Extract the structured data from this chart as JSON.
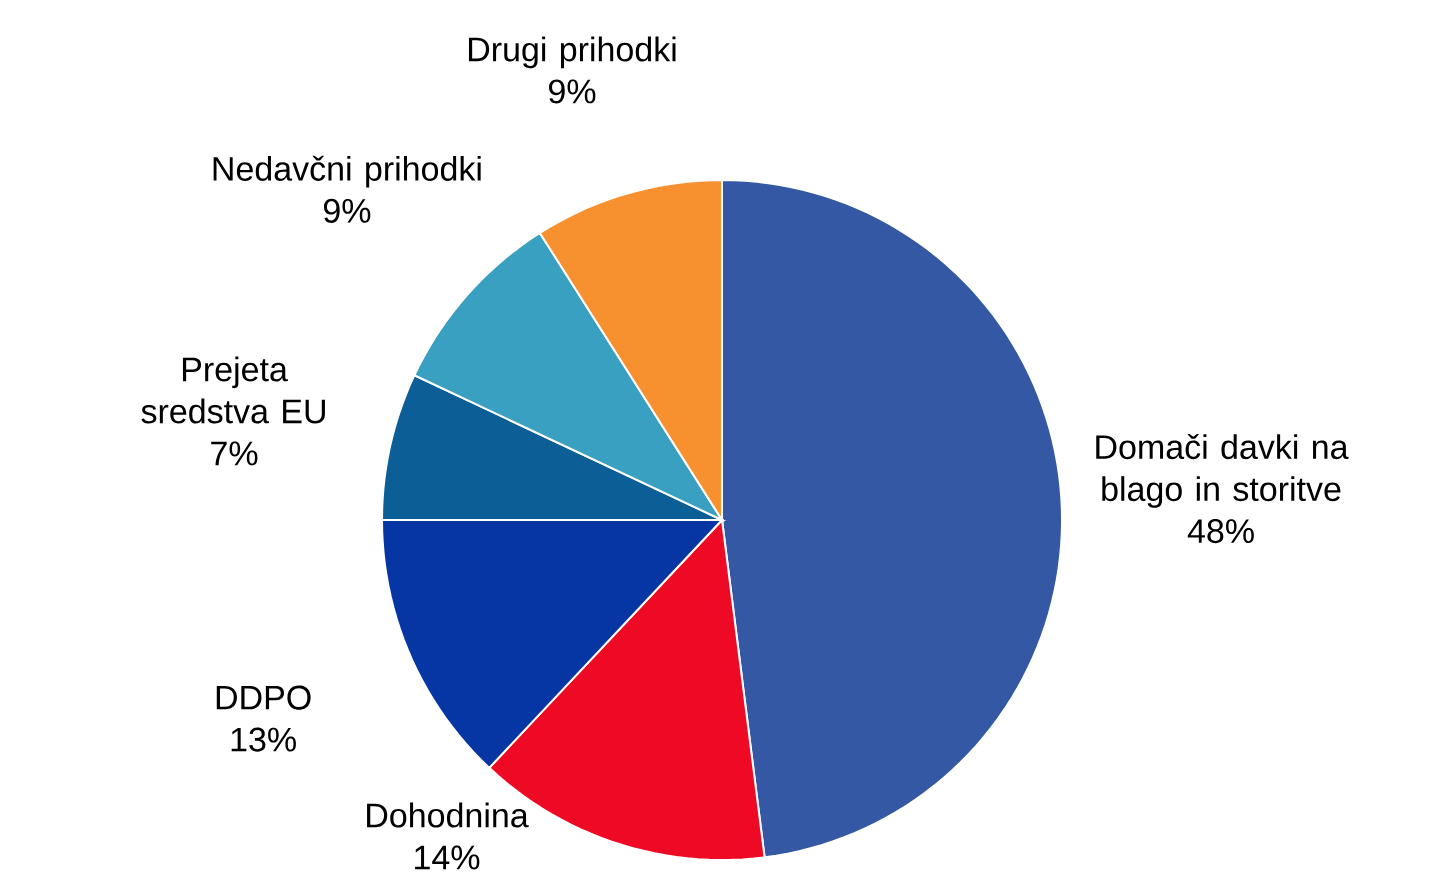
{
  "chart_data": {
    "type": "pie",
    "categories": [
      "Domači davki na blago in storitve",
      "Dohodnina",
      "DDPO",
      "Prejeta sredstva EU",
      "Nedavčni prihodki",
      "Drugi prihodki"
    ],
    "values": [
      48,
      14,
      13,
      7,
      9,
      9
    ],
    "value_labels": [
      "48%",
      "14%",
      "13%",
      "7%",
      "9%",
      "9%"
    ],
    "colors": [
      "#3558a5",
      "#ee0a24",
      "#0536a3",
      "#0b5f96",
      "#3aa0c2",
      "#f7902f"
    ]
  }
}
